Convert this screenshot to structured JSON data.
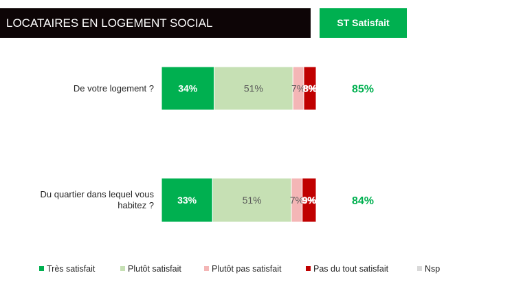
{
  "header": {
    "title": "LOCATAIRES EN LOGEMENT SOCIAL",
    "badge": "ST Satisfait"
  },
  "colors": {
    "tres_satisfait": "#00b050",
    "plutot_satisfait": "#c6e0b4",
    "plutot_pas_satisfait": "#f4b6b6",
    "pas_du_tout": "#c00000",
    "nsp": "#d9d9d9",
    "st_text": "#00b050"
  },
  "chart_data": {
    "type": "bar",
    "orientation": "horizontal",
    "stacked": true,
    "categories": [
      "De votre logement ?",
      "Du quartier dans lequel vous habitez ?"
    ],
    "series": [
      {
        "name": "Très satisfait",
        "values": [
          34,
          33
        ],
        "labels": [
          "34%",
          "33%"
        ]
      },
      {
        "name": "Plutôt satisfait",
        "values": [
          51,
          51
        ],
        "labels": [
          "51%",
          "51%"
        ]
      },
      {
        "name": "Plutôt pas satisfait",
        "values": [
          7,
          7
        ],
        "labels": [
          "7%",
          "7%"
        ]
      },
      {
        "name": "Pas du tout satisfait",
        "values": [
          8,
          9
        ],
        "labels": [
          "8%",
          "9%"
        ]
      },
      {
        "name": "Nsp",
        "values": [
          0,
          0
        ],
        "labels": [
          "",
          ""
        ]
      }
    ],
    "st_satisfait": [
      "85%",
      "84%"
    ],
    "legend_position": "bottom"
  }
}
